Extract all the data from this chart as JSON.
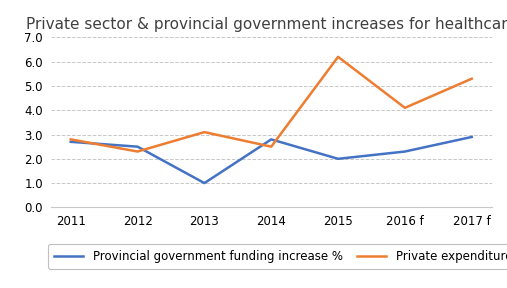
{
  "title": "Private sector & provincial government increases for healthcare",
  "categories": [
    "2011",
    "2012",
    "2013",
    "2014",
    "2015",
    "2016 f",
    "2017 f"
  ],
  "provincial": [
    2.7,
    2.5,
    1.0,
    2.8,
    2.0,
    2.3,
    2.9
  ],
  "private": [
    2.8,
    2.3,
    3.1,
    2.5,
    6.2,
    4.1,
    5.3
  ],
  "provincial_color": "#4472c4",
  "private_color": "#ed7d31",
  "provincial_label": "Provincial government funding increase %",
  "private_label": "Private expenditure increase%",
  "ylim": [
    0.0,
    7.0
  ],
  "yticks": [
    0.0,
    1.0,
    2.0,
    3.0,
    4.0,
    5.0,
    6.0,
    7.0
  ],
  "background_color": "#ffffff",
  "grid_color": "#c8c8c8",
  "title_fontsize": 11,
  "legend_fontsize": 8.5,
  "tick_fontsize": 8.5
}
